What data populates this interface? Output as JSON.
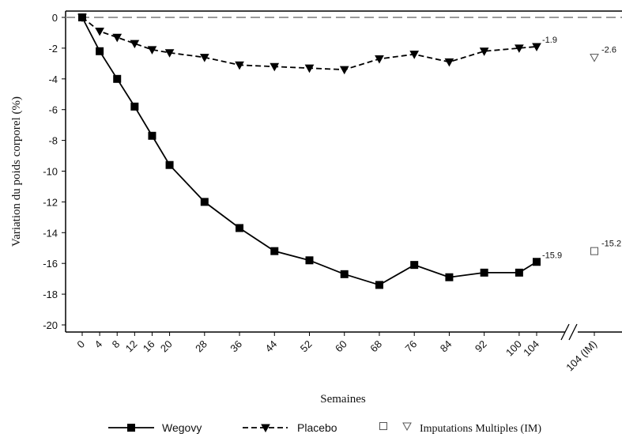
{
  "chart_data": {
    "type": "line",
    "xlabel": "Semaines",
    "ylabel": "Variation du poids corporel (%)",
    "ylim": [
      -20,
      0
    ],
    "yticks": [
      0,
      -2,
      -4,
      -6,
      -8,
      -10,
      -12,
      -14,
      -16,
      -18,
      -20
    ],
    "x": [
      0,
      4,
      8,
      12,
      16,
      20,
      28,
      36,
      44,
      52,
      60,
      68,
      76,
      84,
      92,
      100,
      104
    ],
    "x_tick_labels": [
      "0",
      "4",
      "8",
      "12",
      "16",
      "20",
      "28",
      "36",
      "44",
      "52",
      "60",
      "68",
      "76",
      "84",
      "92",
      "100",
      "104"
    ],
    "extra_tick_label": "104 (IM)",
    "series": [
      {
        "name": "Wegovy",
        "color": "#000000",
        "line_style": "solid",
        "marker": "filled-square",
        "values": [
          0,
          -2.2,
          -4.0,
          -5.8,
          -7.7,
          -9.6,
          -12.0,
          -13.7,
          -15.2,
          -15.8,
          -16.7,
          -17.4,
          -16.1,
          -16.9,
          -16.6,
          -16.6,
          -15.9
        ],
        "end_label": "-15.9"
      },
      {
        "name": "Placebo",
        "color": "#000000",
        "line_style": "dashed",
        "marker": "filled-down-triangle",
        "values": [
          0,
          -0.9,
          -1.3,
          -1.7,
          -2.1,
          -2.3,
          -2.6,
          -3.1,
          -3.2,
          -3.3,
          -3.4,
          -2.7,
          -2.4,
          -2.9,
          -2.2,
          -2.0,
          -1.9
        ],
        "end_label": "-1.9"
      }
    ],
    "imputed_points": [
      {
        "series": "Wegovy",
        "value": -15.2,
        "label": "-15.2",
        "marker": "open-square"
      },
      {
        "series": "Placebo",
        "value": -2.6,
        "label": "-2.6",
        "marker": "open-down-triangle"
      }
    ],
    "reference_line": {
      "y": 0,
      "style": "dashed",
      "color": "#9a9a9a"
    },
    "legend": {
      "placement": "bottom",
      "items": [
        "Wegovy",
        "Placebo",
        "Imputations Multiples (IM)"
      ]
    },
    "grid": false
  }
}
